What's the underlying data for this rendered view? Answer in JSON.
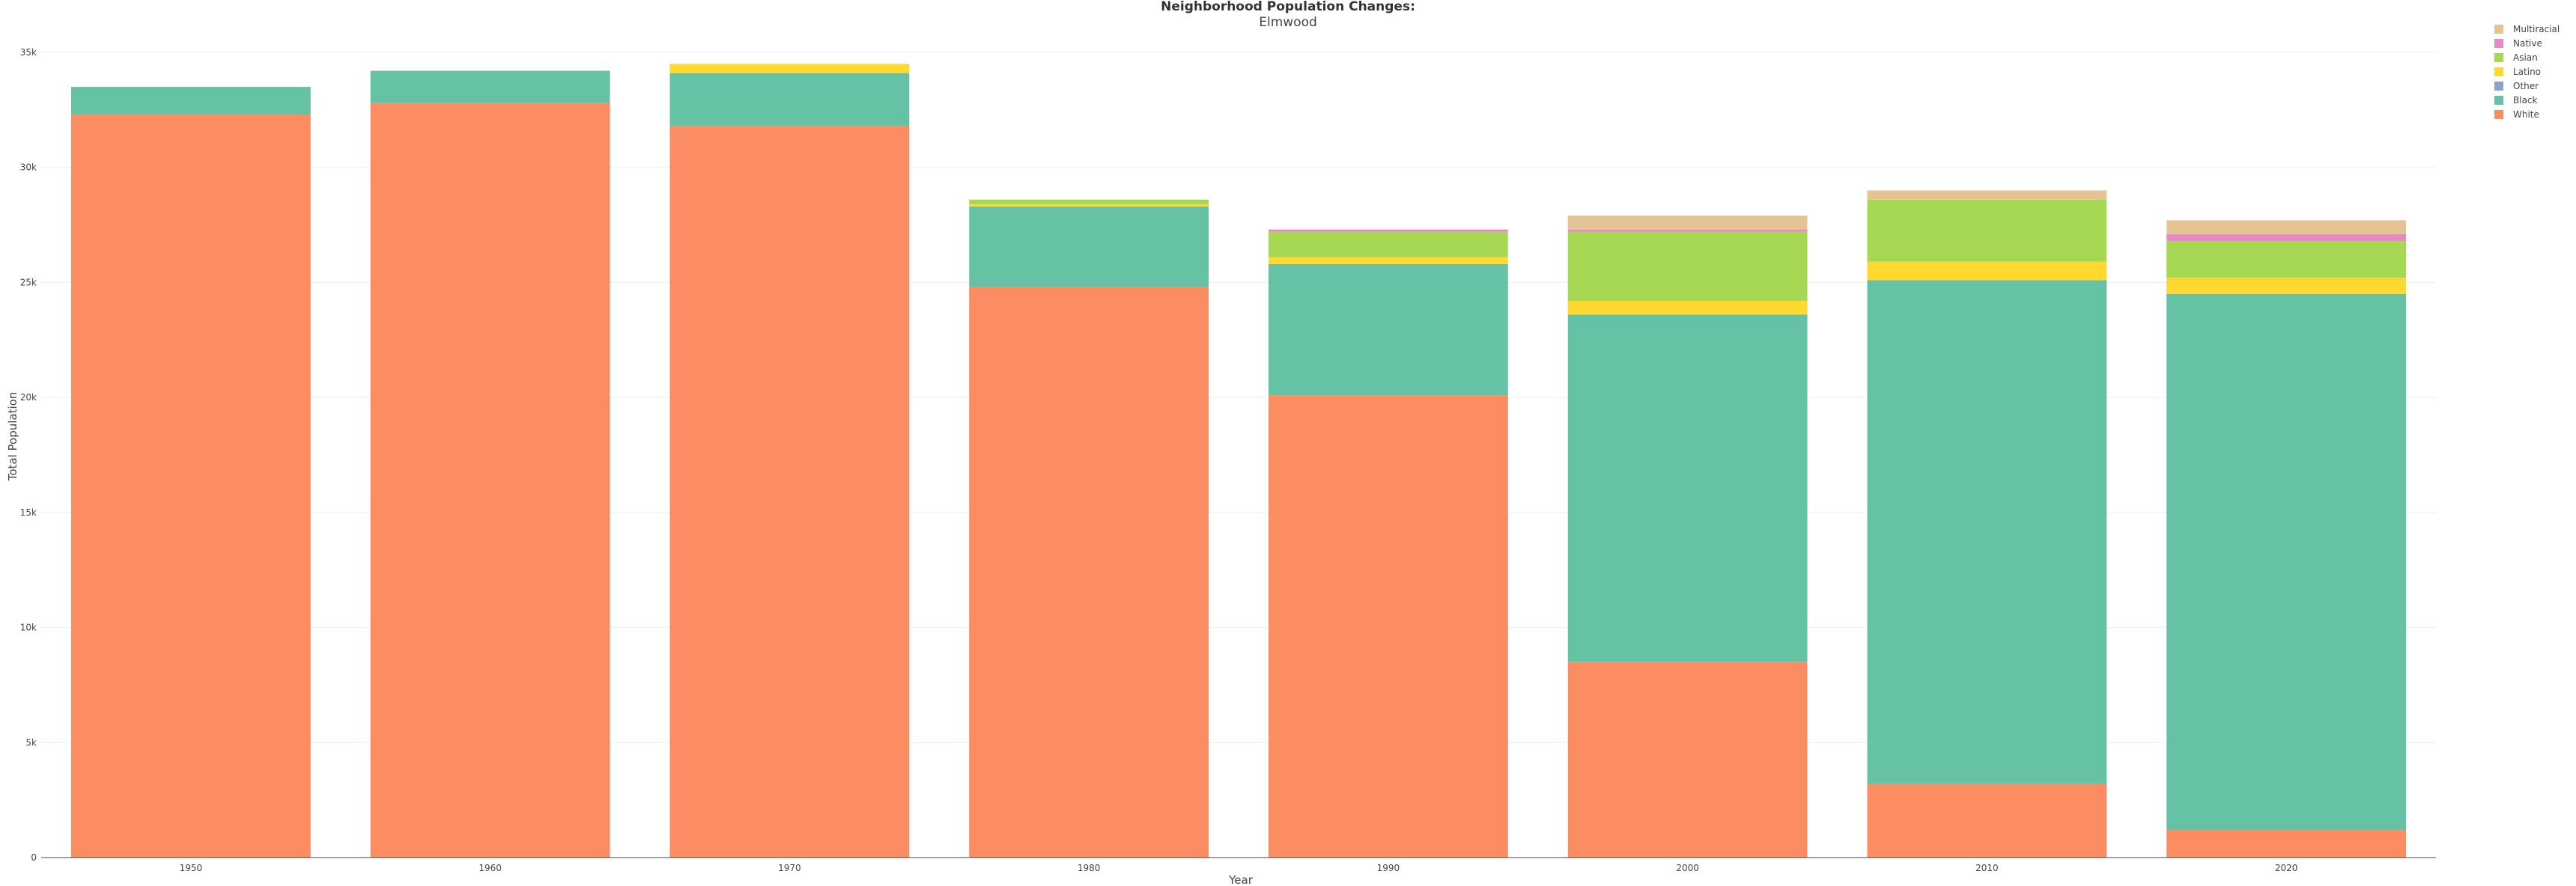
{
  "chart_data": {
    "type": "bar",
    "stacked": true,
    "title": "Neighborhood Population Changes:",
    "subtitle": "Elmwood",
    "xlabel": "Year",
    "ylabel": "Total Population",
    "ylim": [
      0,
      35000
    ],
    "yticks": [
      0,
      5000,
      10000,
      15000,
      20000,
      25000,
      30000,
      35000
    ],
    "ytick_labels": [
      "0",
      "5k",
      "10k",
      "15k",
      "20k",
      "25k",
      "30k",
      "35k"
    ],
    "grid": true,
    "legend_position": "top-right",
    "categories": [
      "1950",
      "1960",
      "1970",
      "1980",
      "1990",
      "2000",
      "2010",
      "2020"
    ],
    "series": [
      {
        "name": "White",
        "color": "#fc8d62",
        "values": [
          32300,
          32800,
          31800,
          24800,
          20100,
          8500,
          3200,
          1200
        ]
      },
      {
        "name": "Black",
        "color": "#66c2a5",
        "values": [
          1200,
          1400,
          2300,
          3500,
          5700,
          15100,
          21900,
          23300
        ]
      },
      {
        "name": "Other",
        "color": "#8da0cb",
        "values": [
          0,
          0,
          0,
          0,
          0,
          0,
          0,
          0
        ]
      },
      {
        "name": "Latino",
        "color": "#ffd92f",
        "values": [
          0,
          0,
          400,
          100,
          300,
          600,
          800,
          700
        ]
      },
      {
        "name": "Asian",
        "color": "#a6d854",
        "values": [
          0,
          0,
          0,
          200,
          1100,
          3000,
          2700,
          1600
        ]
      },
      {
        "name": "Native",
        "color": "#e78ac3",
        "values": [
          0,
          0,
          0,
          0,
          100,
          100,
          0,
          300
        ]
      },
      {
        "name": "Multiracial",
        "color": "#e5c494",
        "values": [
          0,
          0,
          0,
          0,
          0,
          600,
          400,
          600
        ]
      }
    ],
    "legend_order": [
      "Multiracial",
      "Native",
      "Asian",
      "Latino",
      "Other",
      "Black",
      "White"
    ]
  }
}
